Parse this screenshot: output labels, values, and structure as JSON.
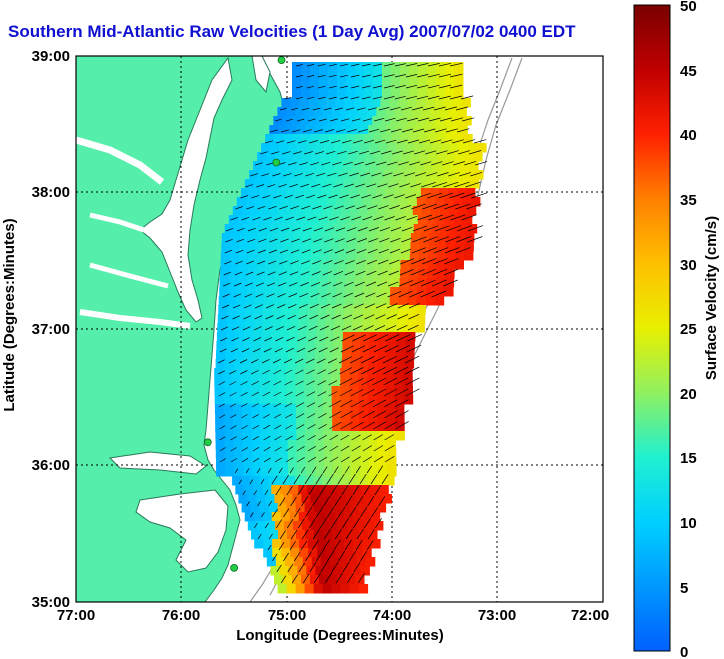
{
  "title": "Southern Mid-Atlantic Raw Velocities (1 Day Avg) 2007/07/02 0400 EDT",
  "x_axis": {
    "label": "Longitude (Degrees:Minutes)",
    "ticks": [
      "77:00",
      "76:00",
      "75:00",
      "74:00",
      "73:00",
      "72:00"
    ]
  },
  "y_axis": {
    "label": "Latitude (Degrees:Minutes)",
    "ticks": [
      "39:00",
      "38:00",
      "37:00",
      "36:00",
      "35:00"
    ]
  },
  "colorbar": {
    "label": "Surface Velocity (cm/s)",
    "ticks": [
      "50",
      "45",
      "40",
      "35",
      "30",
      "25",
      "20",
      "15",
      "10",
      "5",
      "0"
    ],
    "min": 0,
    "max": 50
  },
  "colors": {
    "land": "#55eeaa",
    "water": "#ffffff",
    "title": "#1010d0",
    "stations": "#22cc44",
    "vectors": "#000000"
  },
  "map_extent": {
    "lon_range": [
      -77,
      -72
    ],
    "lat_range": [
      35,
      39
    ]
  },
  "hf_radar_stations": [
    {
      "lon": -75.05,
      "lat": 38.97
    },
    {
      "lon": -75.1,
      "lat": 38.22
    },
    {
      "lon": -75.75,
      "lat": 36.17
    },
    {
      "lon": -75.5,
      "lat": 35.25
    }
  ]
}
